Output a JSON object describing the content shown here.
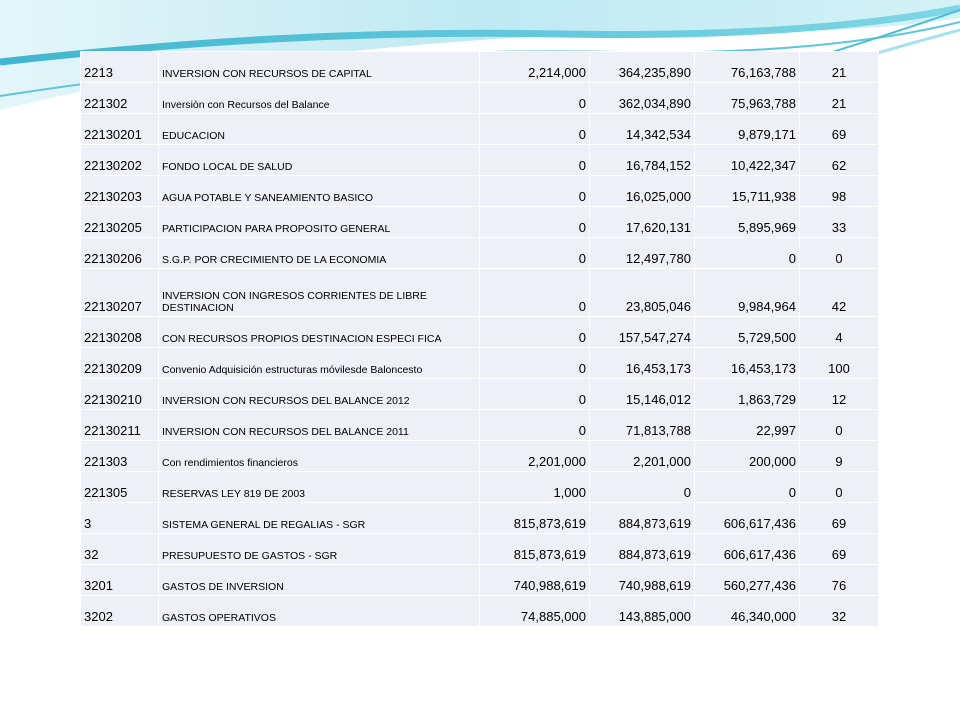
{
  "rows": [
    {
      "code": "2213",
      "desc": "INVERSION CON RECURSOS DE CAPITAL",
      "v1": "2,214,000",
      "v2": "364,235,890",
      "v3": "76,163,788",
      "pct": "21"
    },
    {
      "code": "221302",
      "desc": "Inversiòn con Recursos del Balance",
      "v1": "0",
      "v2": "362,034,890",
      "v3": "75,963,788",
      "pct": "21"
    },
    {
      "code": "22130201",
      "desc": "EDUCACION",
      "v1": "0",
      "v2": "14,342,534",
      "v3": "9,879,171",
      "pct": "69"
    },
    {
      "code": "22130202",
      "desc": "FONDO LOCAL DE SALUD",
      "v1": "0",
      "v2": "16,784,152",
      "v3": "10,422,347",
      "pct": "62"
    },
    {
      "code": "22130203",
      "desc": "AGUA POTABLE Y SANEAMIENTO BASICO",
      "v1": "0",
      "v2": "16,025,000",
      "v3": "15,711,938",
      "pct": "98"
    },
    {
      "code": "22130205",
      "desc": "PARTICIPACION PARA PROPOSITO GENERAL",
      "v1": "0",
      "v2": "17,620,131",
      "v3": "5,895,969",
      "pct": "33"
    },
    {
      "code": "22130206",
      "desc": "S.G.P. POR CRECIMIENTO DE LA ECONOMIA",
      "v1": "0",
      "v2": "12,497,780",
      "v3": "0",
      "pct": "0"
    },
    {
      "code": "22130207",
      "desc": "INVERSION CON INGRESOS CORRIENTES DE LIBRE DESTINACION",
      "v1": "0",
      "v2": "23,805,046",
      "v3": "9,984,964",
      "pct": "42"
    },
    {
      "code": "22130208",
      "desc": "CON RECURSOS PROPIOS DESTINACION ESPECI FICA",
      "v1": "0",
      "v2": "157,547,274",
      "v3": "5,729,500",
      "pct": "4"
    },
    {
      "code": "22130209",
      "desc": "Convenio Adquisición estructuras móvilesde Baloncesto",
      "v1": "0",
      "v2": "16,453,173",
      "v3": "16,453,173",
      "pct": "100"
    },
    {
      "code": "22130210",
      "desc": "INVERSION CON RECURSOS DEL BALANCE 2012",
      "v1": "0",
      "v2": "15,146,012",
      "v3": "1,863,729",
      "pct": "12"
    },
    {
      "code": "22130211",
      "desc": "INVERSION CON RECURSOS DEL BALANCE 2011",
      "v1": "0",
      "v2": "71,813,788",
      "v3": "22,997",
      "pct": "0"
    },
    {
      "code": "221303",
      "desc": "Con rendimientos financieros",
      "v1": "2,201,000",
      "v2": "2,201,000",
      "v3": "200,000",
      "pct": "9"
    },
    {
      "code": "221305",
      "desc": "RESERVAS LEY 819 DE 2003",
      "v1": "1,000",
      "v2": "0",
      "v3": "0",
      "pct": "0"
    },
    {
      "code": "3",
      "desc": "SISTEMA GENERAL DE REGALIAS - SGR",
      "v1": "815,873,619",
      "v2": "884,873,619",
      "v3": "606,617,436",
      "pct": "69"
    },
    {
      "code": "32",
      "desc": "PRESUPUESTO DE GASTOS - SGR",
      "v1": "815,873,619",
      "v2": "884,873,619",
      "v3": "606,617,436",
      "pct": "69"
    },
    {
      "code": "3201",
      "desc": "GASTOS DE INVERSION",
      "v1": "740,988,619",
      "v2": "740,988,619",
      "v3": "560,277,436",
      "pct": "76"
    },
    {
      "code": "3202",
      "desc": "GASTOS OPERATIVOS",
      "v1": "74,885,000",
      "v2": "143,885,000",
      "v3": "46,340,000",
      "pct": "32"
    }
  ]
}
